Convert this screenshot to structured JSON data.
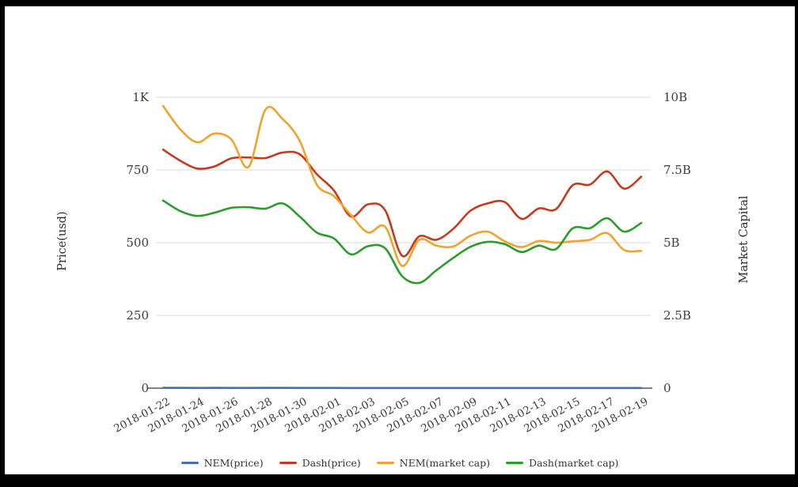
{
  "chart_data": {
    "type": "line",
    "title": "",
    "grid": true,
    "legend_position": "bottom",
    "x": [
      "2018-01-22",
      "2018-01-23",
      "2018-01-24",
      "2018-01-25",
      "2018-01-26",
      "2018-01-27",
      "2018-01-28",
      "2018-01-29",
      "2018-01-30",
      "2018-01-31",
      "2018-02-01",
      "2018-02-02",
      "2018-02-03",
      "2018-02-04",
      "2018-02-05",
      "2018-02-06",
      "2018-02-07",
      "2018-02-08",
      "2018-02-09",
      "2018-02-10",
      "2018-02-11",
      "2018-02-12",
      "2018-02-13",
      "2018-02-14",
      "2018-02-15",
      "2018-02-16",
      "2018-02-17",
      "2018-02-18",
      "2018-02-19"
    ],
    "x_tick_labels": [
      "2018-01-22",
      "2018-01-24",
      "2018-01-26",
      "2018-01-28",
      "2018-01-30",
      "2018-02-01",
      "2018-02-03",
      "2018-02-05",
      "2018-02-07",
      "2018-02-09",
      "2018-02-11",
      "2018-02-13",
      "2018-02-15",
      "2018-02-17",
      "2018-02-19"
    ],
    "left_axis": {
      "label": "Price(usd)",
      "ticks": [
        "1K",
        "750",
        "500",
        "250",
        "0"
      ],
      "range": [
        0,
        1000
      ]
    },
    "right_axis": {
      "label": "Market Capital",
      "ticks": [
        "10B",
        "7.5B",
        "5B",
        "2.5B",
        "0"
      ],
      "range_billions": [
        0,
        10
      ]
    },
    "series": [
      {
        "name": "NEM(price)",
        "axis": "left",
        "color": "#4471b3",
        "values": [
          1.08,
          0.99,
          0.94,
          0.97,
          0.95,
          0.84,
          1.06,
          1.03,
          0.94,
          0.78,
          0.73,
          0.66,
          0.59,
          0.62,
          0.47,
          0.57,
          0.54,
          0.54,
          0.58,
          0.6,
          0.56,
          0.54,
          0.56,
          0.56,
          0.56,
          0.57,
          0.59,
          0.53,
          0.52
        ]
      },
      {
        "name": "Dash(price)",
        "axis": "left",
        "color": "#c33b1e",
        "values": [
          820,
          782,
          755,
          762,
          790,
          793,
          791,
          810,
          804,
          736,
          680,
          590,
          632,
          612,
          455,
          522,
          510,
          548,
          610,
          635,
          640,
          582,
          618,
          615,
          698,
          700,
          745,
          686,
          727
        ]
      },
      {
        "name": "NEM(market cap)",
        "axis": "right",
        "color": "#f0a22b",
        "values": [
          9.7,
          8.9,
          8.45,
          8.75,
          8.55,
          7.6,
          9.58,
          9.25,
          8.5,
          7.0,
          6.6,
          5.95,
          5.35,
          5.55,
          4.2,
          5.1,
          4.9,
          4.87,
          5.24,
          5.38,
          5.05,
          4.85,
          5.06,
          5.0,
          5.05,
          5.1,
          5.33,
          4.75,
          4.72
        ]
      },
      {
        "name": "Dash(market cap)",
        "axis": "right",
        "color": "#2b9b2b",
        "values": [
          6.45,
          6.09,
          5.92,
          6.03,
          6.2,
          6.22,
          6.17,
          6.35,
          5.9,
          5.35,
          5.15,
          4.6,
          4.88,
          4.81,
          3.85,
          3.62,
          4.05,
          4.48,
          4.86,
          5.03,
          4.95,
          4.68,
          4.9,
          4.78,
          5.5,
          5.5,
          5.84,
          5.38,
          5.68
        ]
      }
    ],
    "legend": [
      "NEM(price)",
      "Dash(price)",
      "NEM(market cap)",
      "Dash(market cap)"
    ]
  }
}
